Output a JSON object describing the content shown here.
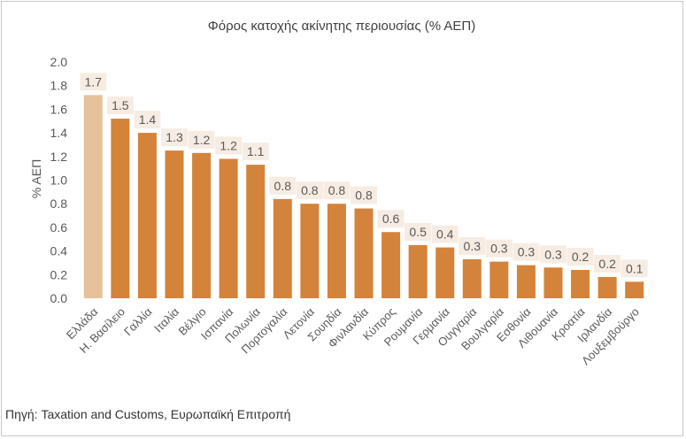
{
  "chart_data": {
    "type": "bar",
    "title": "Φόρος κατοχής ακίνητης περιουσίας (% ΑΕΠ)",
    "ylabel": "% ΑΕΠ",
    "xlabel": "",
    "ylim": [
      0,
      2.0
    ],
    "yticks": [
      "0.0",
      "0.2",
      "0.4",
      "0.6",
      "0.8",
      "1.0",
      "1.2",
      "1.4",
      "1.6",
      "1.8",
      "2.0"
    ],
    "categories": [
      "Ελλάδα",
      "Η. Βασίλειο",
      "Γαλλία",
      "Ιταλία",
      "Βέλγιο",
      "Ισπανία",
      "Πολωνία",
      "Πορτογαλία",
      "Λετονία",
      "Σουηδία",
      "Φινλανδία",
      "Κύπρος",
      "Ρουμανία",
      "Γερμανία",
      "Ουγγαρία",
      "Βουλγαρία",
      "Εσθονία",
      "Λιθουανία",
      "Κροατία",
      "Ιρλανδία",
      "Λουξεμβούργο"
    ],
    "values": [
      1.72,
      1.52,
      1.4,
      1.25,
      1.23,
      1.18,
      1.13,
      0.84,
      0.8,
      0.8,
      0.76,
      0.56,
      0.45,
      0.43,
      0.33,
      0.31,
      0.28,
      0.26,
      0.24,
      0.18,
      0.14
    ],
    "data_labels": [
      "1.7",
      "1.5",
      "1.4",
      "1.3",
      "1.2",
      "1.2",
      "1.1",
      "0.8",
      "0.8",
      "0.8",
      "0.8",
      "0.6",
      "0.5",
      "0.4",
      "0.3",
      "0.3",
      "0.3",
      "0.3",
      "0.2",
      "0.2",
      "0.1"
    ],
    "highlight_index": 0,
    "colors": {
      "highlight": "#e6c29a",
      "bar": "#d4833a",
      "label_bg": "#f7ece3",
      "text": "#595959"
    },
    "grid": false
  },
  "source_text": "Πηγή: Taxation and Customs, Ευρωπαϊκή Επιτροπή"
}
